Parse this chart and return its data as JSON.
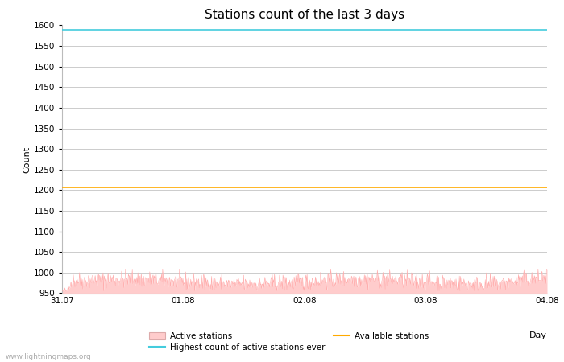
{
  "title": "Stations count of the last 3 days",
  "xlabel": "Day",
  "ylabel": "Count",
  "ylim": [
    950,
    1600
  ],
  "yticks": [
    950,
    1000,
    1050,
    1100,
    1150,
    1200,
    1250,
    1300,
    1350,
    1400,
    1450,
    1500,
    1550,
    1600
  ],
  "xlim_start": 0,
  "xlim_end": 72,
  "xtick_positions": [
    0,
    18,
    36,
    54,
    72
  ],
  "xtick_labels": [
    "31.07",
    "01.08",
    "02.08",
    "03.08",
    "04.08"
  ],
  "highest_count_ever": 1590,
  "available_stations": 1207,
  "active_stations_base": 978,
  "active_stations_amplitude": 15,
  "active_fill_color": "#ffcccc",
  "active_line_color": "#ffaaaa",
  "highest_line_color": "#44ccdd",
  "available_line_color": "#ffaa00",
  "grid_color": "#cccccc",
  "background_color": "#ffffff",
  "watermark": "www.lightningmaps.org",
  "watermark_color": "#aaaaaa",
  "title_fontsize": 11,
  "axis_label_fontsize": 8,
  "tick_fontsize": 7.5,
  "legend_fontsize": 7.5
}
